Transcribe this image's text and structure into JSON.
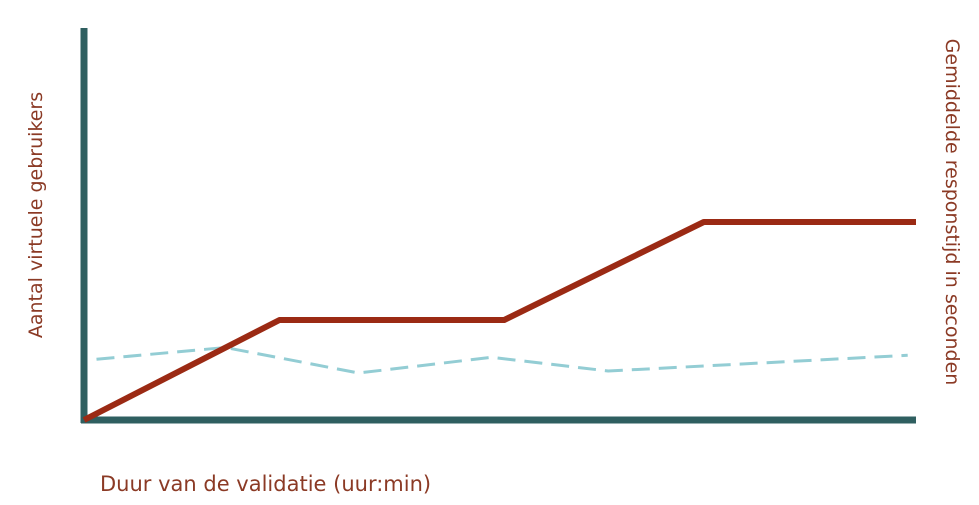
{
  "chart_data": {
    "type": "line",
    "title": "",
    "xlabel": "Duur van de validatie (uur:min)",
    "ylabel_left": "Aantal virtuele gebruikers",
    "ylabel_right": "Gemiddelde responstijd in seconden",
    "xlim": [
      0,
      100
    ],
    "ylim": [
      0,
      100
    ],
    "grid": false,
    "series": [
      {
        "color": "#9b2a14",
        "style": "solid",
        "axis": "left",
        "x": [
          0,
          23.5,
          50.5,
          74.5,
          100
        ],
        "y": [
          0,
          25.5,
          25.5,
          50.5,
          50.5
        ]
      },
      {
        "color": "#93cdd4",
        "style": "dashed",
        "axis": "right",
        "x": [
          1.5,
          17,
          33,
          49,
          63,
          99
        ],
        "y": [
          15.5,
          18.5,
          12,
          16,
          12.5,
          16.5
        ]
      }
    ],
    "axis_color": "#2f5f60"
  }
}
